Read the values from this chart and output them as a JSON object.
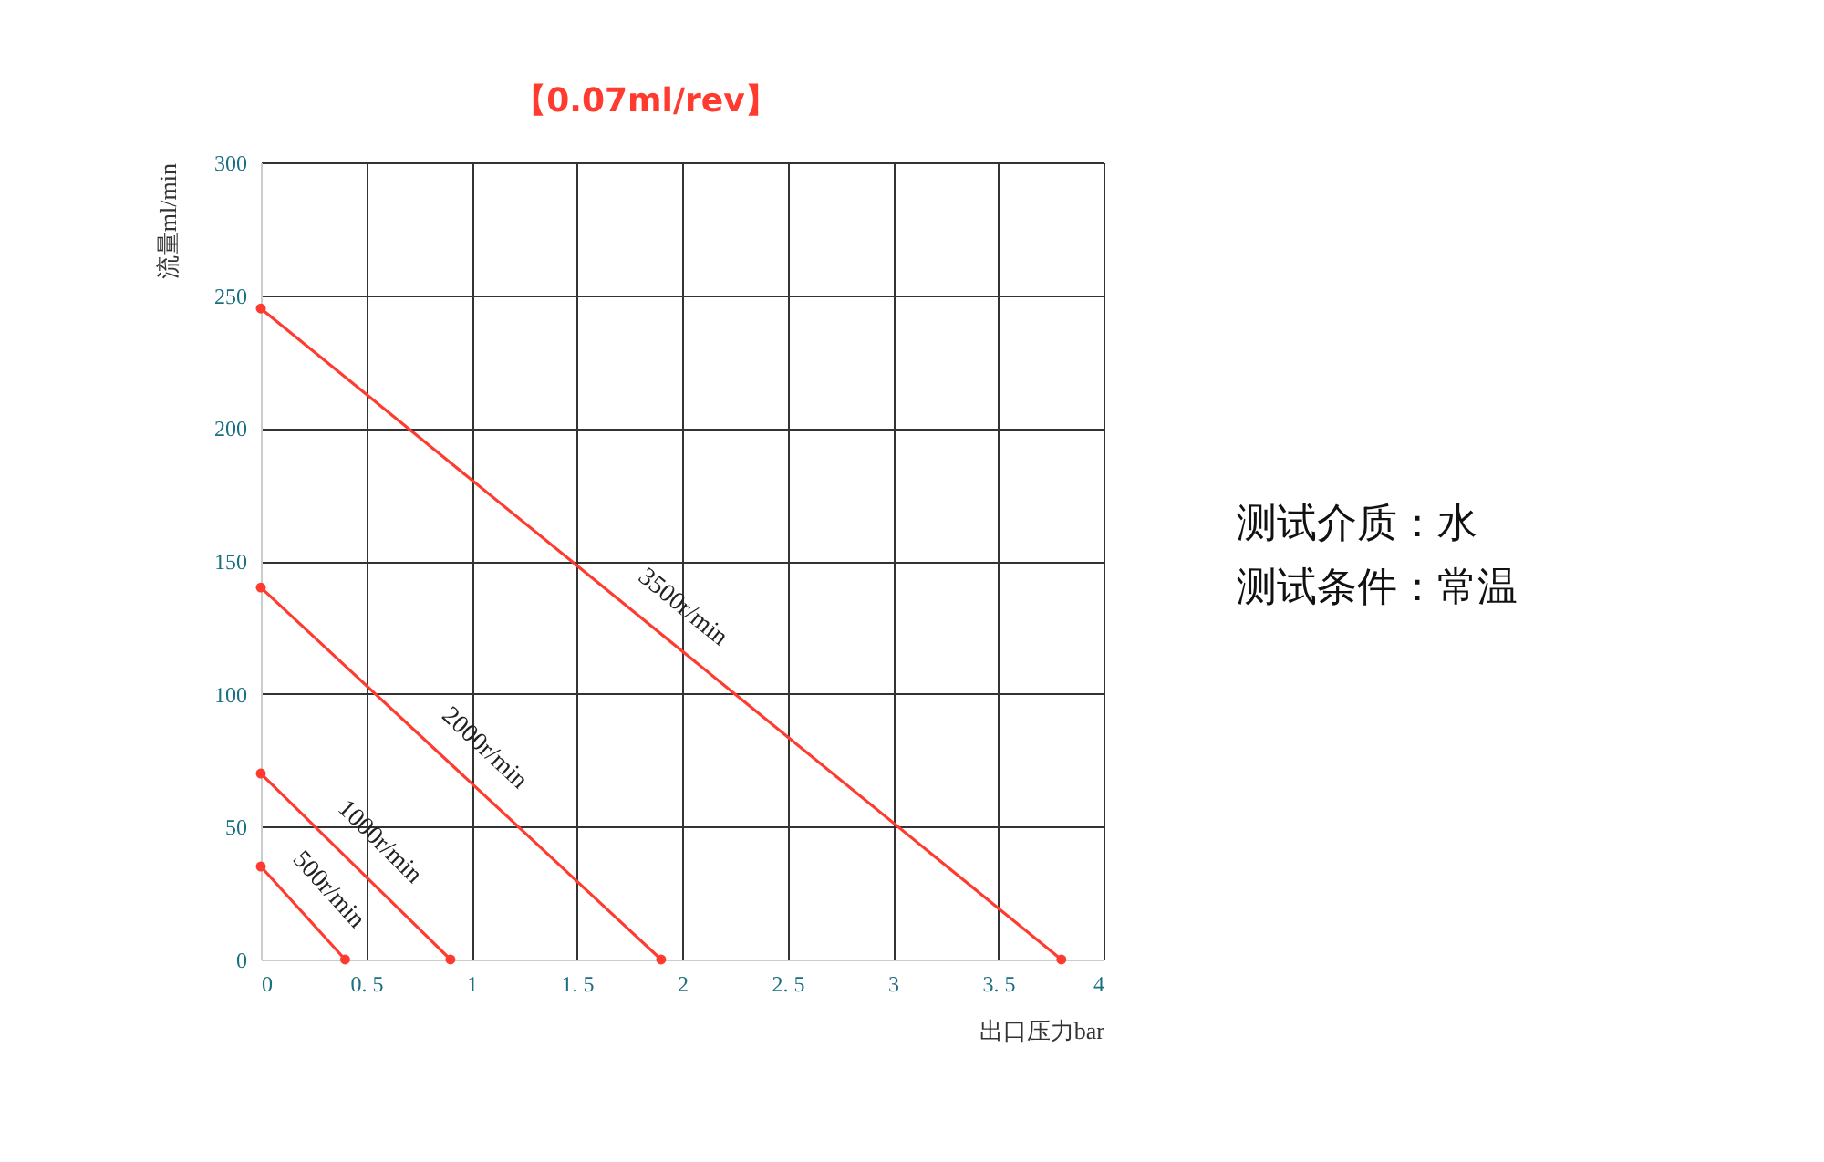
{
  "chart_data": {
    "type": "line",
    "title": "【0.07ml/rev】",
    "xlabel": "出口压力bar",
    "ylabel": "流量ml/min",
    "series": [
      {
        "name": "500r/min",
        "color": "#ff3b2f",
        "x": [
          0,
          0.4
        ],
        "values": [
          35,
          0
        ]
      },
      {
        "name": "1000r/min",
        "color": "#ff3b2f",
        "x": [
          0,
          0.9
        ],
        "values": [
          70,
          0
        ]
      },
      {
        "name": "2000r/min",
        "color": "#ff3b2f",
        "x": [
          0,
          1.9
        ],
        "values": [
          140,
          0
        ]
      },
      {
        "name": "3500r/min",
        "color": "#ff3b2f",
        "x": [
          0,
          3.8
        ],
        "values": [
          245,
          0
        ]
      }
    ],
    "xlim": [
      0,
      4
    ],
    "xticks": [
      0,
      0.5,
      1,
      1.5,
      2,
      2.5,
      3,
      3.5,
      4
    ],
    "ylim": [
      0,
      300
    ],
    "yticks": [
      0,
      50,
      100,
      150,
      200,
      250,
      300
    ],
    "grid": true,
    "legend": false,
    "marker": "circle",
    "line_style": "solid",
    "annotations": [
      "测试介质：水",
      "测试条件：常温"
    ]
  }
}
